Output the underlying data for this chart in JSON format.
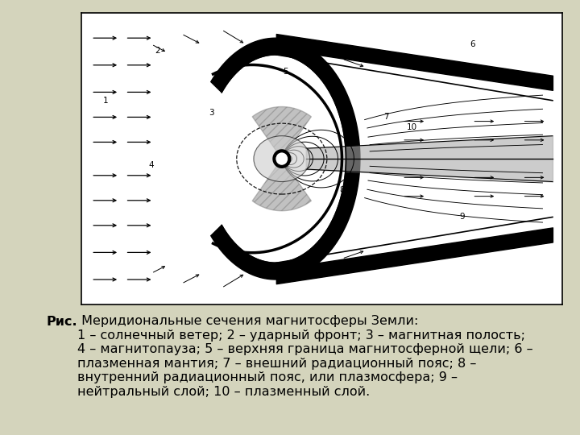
{
  "background_color": "#d4d4bc",
  "diagram_bg": "#ffffff",
  "caption_bold": "Рис.",
  "caption_normal": " Меридиональные сечения магнитосферы Земли:\n1 – солнечный ветер; 2 – ударный фронт; 3 – магнитная полость;\n4 – магнитопауза; 5 – верхняя граница магнитосферной щели; 6 –\nплазменная мантия; 7 – внешний радиационный пояс; 8 –\nвнутренний радиационный пояс, или плазмосфера; 9 –\nнейтральный слой; 10 – плазменный слой.",
  "caption_fontsize": 11.5
}
